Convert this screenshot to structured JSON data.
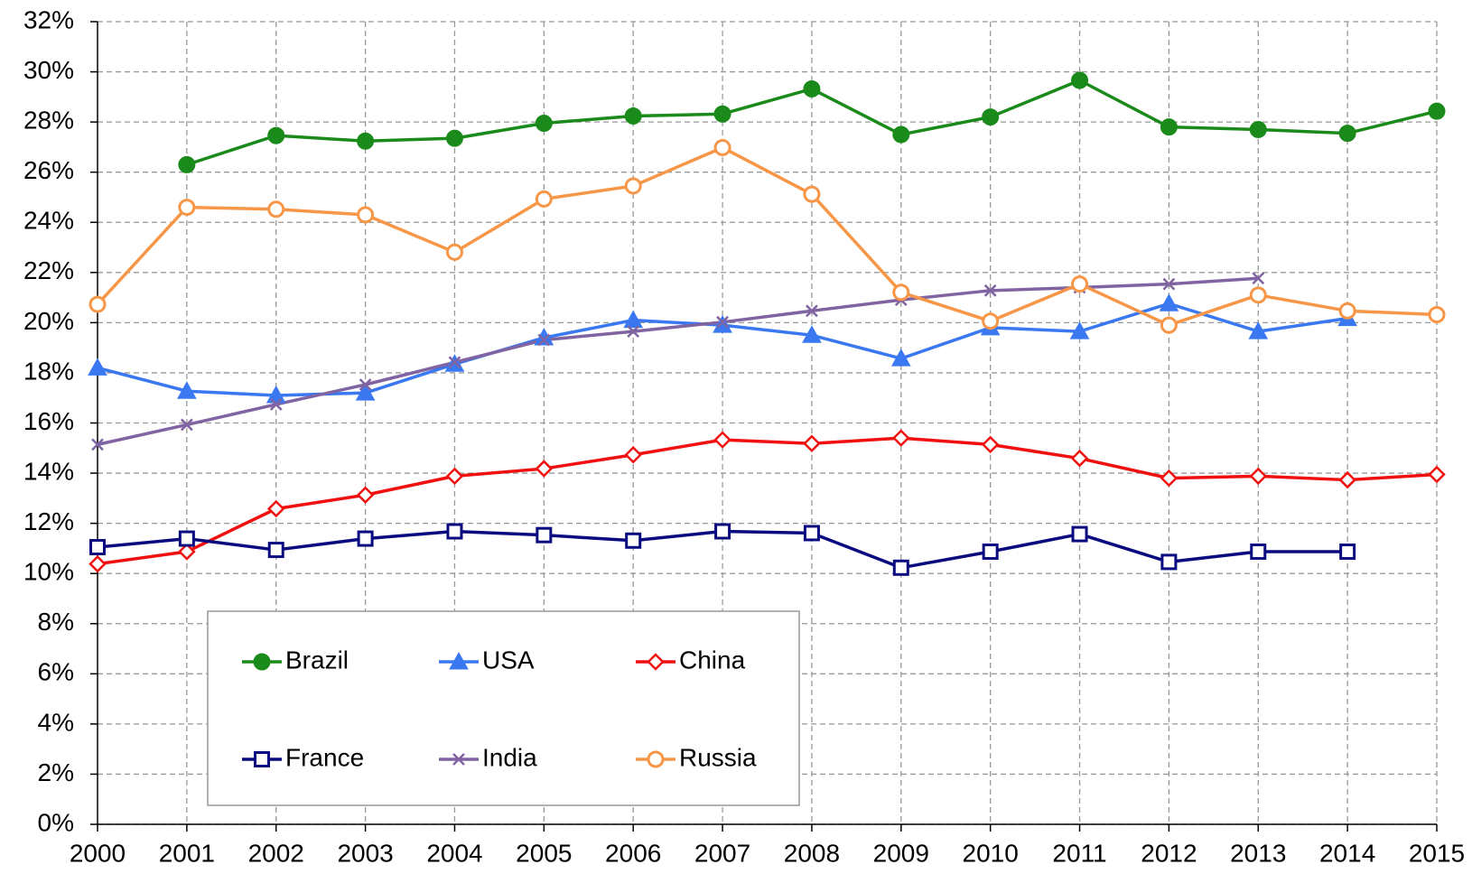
{
  "chart_data": {
    "type": "line",
    "categories": [
      "2000",
      "2001",
      "2002",
      "2003",
      "2004",
      "2005",
      "2006",
      "2007",
      "2008",
      "2009",
      "2010",
      "2011",
      "2012",
      "2013",
      "2014",
      "2015"
    ],
    "series": [
      {
        "name": "Brazil",
        "color": "#1a8a1a",
        "marker": "circle",
        "marker_filled": true,
        "values": [
          null,
          26.3,
          27.46,
          27.24,
          27.35,
          27.95,
          28.24,
          28.32,
          29.32,
          27.5,
          28.2,
          29.66,
          27.8,
          27.7,
          27.55,
          28.43
        ]
      },
      {
        "name": "USA",
        "color": "#3a78f2",
        "marker": "triangle",
        "marker_filled": true,
        "values": [
          18.2,
          17.27,
          17.1,
          17.2,
          18.35,
          19.4,
          20.1,
          19.9,
          19.5,
          18.57,
          19.8,
          19.65,
          20.76,
          19.65,
          20.17,
          null
        ]
      },
      {
        "name": "China",
        "color": "#f01010",
        "marker": "diamond",
        "marker_filled": false,
        "values": [
          10.38,
          10.87,
          12.58,
          13.13,
          13.88,
          14.18,
          14.73,
          15.33,
          15.18,
          15.4,
          15.14,
          14.59,
          13.8,
          13.88,
          13.73,
          13.95
        ]
      },
      {
        "name": "France",
        "color": "#0a0a80",
        "marker": "square",
        "marker_filled": false,
        "values": [
          11.05,
          11.39,
          10.94,
          11.39,
          11.68,
          11.53,
          11.31,
          11.68,
          11.61,
          10.23,
          10.87,
          11.57,
          10.46,
          10.87,
          10.87,
          null
        ]
      },
      {
        "name": "India",
        "color": "#8064a2",
        "marker": "x",
        "marker_filled": false,
        "values": [
          15.14,
          15.93,
          16.74,
          17.53,
          18.42,
          19.31,
          19.65,
          20.02,
          20.47,
          20.91,
          21.28,
          21.4,
          21.54,
          21.77,
          null,
          null
        ]
      },
      {
        "name": "Russia",
        "color": "#f79646",
        "marker": "circle",
        "marker_filled": false,
        "values": [
          20.73,
          24.6,
          24.52,
          24.3,
          22.81,
          24.93,
          25.45,
          26.98,
          25.12,
          21.21,
          20.06,
          21.54,
          19.9,
          21.1,
          20.47,
          20.32
        ]
      }
    ],
    "ylim": [
      0,
      32
    ],
    "yticks": [
      {
        "value": 0,
        "label": "0%"
      },
      {
        "value": 2,
        "label": "2%"
      },
      {
        "value": 4,
        "label": "4%"
      },
      {
        "value": 6,
        "label": "6%"
      },
      {
        "value": 8,
        "label": "8%"
      },
      {
        "value": 10,
        "label": "10%"
      },
      {
        "value": 12,
        "label": "12%"
      },
      {
        "value": 14,
        "label": "14%"
      },
      {
        "value": 16,
        "label": "16%"
      },
      {
        "value": 18,
        "label": "18%"
      },
      {
        "value": 20,
        "label": "20%"
      },
      {
        "value": 22,
        "label": "22%"
      },
      {
        "value": 24,
        "label": "24%"
      },
      {
        "value": 26,
        "label": "26%"
      },
      {
        "value": 28,
        "label": "28%"
      },
      {
        "value": 30,
        "label": "30%"
      },
      {
        "value": 32,
        "label": "32%"
      }
    ],
    "grid": true,
    "legend_position": "lower-left",
    "legend_columns": 3
  }
}
